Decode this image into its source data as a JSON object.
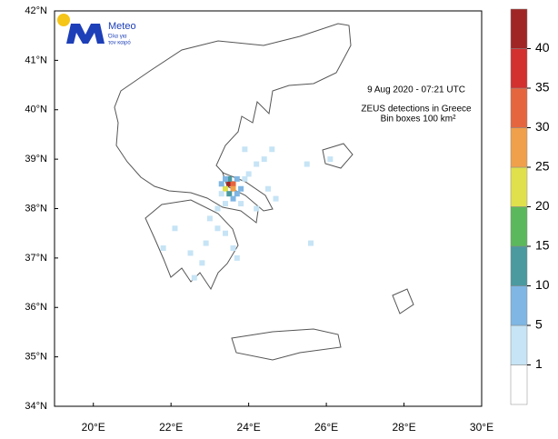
{
  "logo": {
    "name": "Meteo",
    "tagline": [
      "Όλα για",
      "τον καιρό"
    ]
  },
  "annotation": {
    "datetime": "9  Aug 2020 - 07:21 UTC",
    "line1": "ZEUS detections in Greece",
    "line2": "Bin boxes 100 km²"
  },
  "map": {
    "lonlim": [
      19,
      30
    ],
    "latlim": [
      34,
      42
    ],
    "lon_ticks": [
      {
        "value": 20,
        "label": "20°E"
      },
      {
        "value": 22,
        "label": "22°E"
      },
      {
        "value": 24,
        "label": "24°E"
      },
      {
        "value": 26,
        "label": "26°E"
      },
      {
        "value": 28,
        "label": "28°E"
      },
      {
        "value": 30,
        "label": "30°E"
      }
    ],
    "lat_ticks": [
      {
        "value": 34,
        "label": "34°N"
      },
      {
        "value": 35,
        "label": "35°N"
      },
      {
        "value": 36,
        "label": "36°N"
      },
      {
        "value": 37,
        "label": "37°N"
      },
      {
        "value": 38,
        "label": "38°N"
      },
      {
        "value": 39,
        "label": "39°N"
      },
      {
        "value": 40,
        "label": "40°N"
      },
      {
        "value": 41,
        "label": "41°N"
      },
      {
        "value": 42,
        "label": "42°N"
      }
    ],
    "cells": [
      {
        "lon": 23.5,
        "lat": 38.5,
        "value": 40
      },
      {
        "lon": 23.6,
        "lat": 38.5,
        "value": 32
      },
      {
        "lon": 23.4,
        "lat": 38.4,
        "value": 22
      },
      {
        "lon": 23.6,
        "lat": 38.4,
        "value": 25
      },
      {
        "lon": 23.5,
        "lat": 38.6,
        "value": 12
      },
      {
        "lon": 23.7,
        "lat": 38.6,
        "value": 8
      },
      {
        "lon": 23.4,
        "lat": 38.6,
        "value": 6
      },
      {
        "lon": 23.3,
        "lat": 38.5,
        "value": 5
      },
      {
        "lon": 23.8,
        "lat": 38.4,
        "value": 7
      },
      {
        "lon": 23.5,
        "lat": 38.3,
        "value": 10
      },
      {
        "lon": 23.7,
        "lat": 38.3,
        "value": 6
      },
      {
        "lon": 23.3,
        "lat": 38.3,
        "value": 4
      },
      {
        "lon": 23.9,
        "lat": 38.6,
        "value": 3
      },
      {
        "lon": 24.0,
        "lat": 38.7,
        "value": 2
      },
      {
        "lon": 23.6,
        "lat": 38.2,
        "value": 6
      },
      {
        "lon": 23.4,
        "lat": 38.1,
        "value": 3
      },
      {
        "lon": 23.8,
        "lat": 38.1,
        "value": 2
      },
      {
        "lon": 24.2,
        "lat": 38.9,
        "value": 2
      },
      {
        "lon": 24.4,
        "lat": 39.0,
        "value": 1
      },
      {
        "lon": 24.6,
        "lat": 39.2,
        "value": 1
      },
      {
        "lon": 23.9,
        "lat": 39.2,
        "value": 2
      },
      {
        "lon": 23.2,
        "lat": 38.0,
        "value": 2
      },
      {
        "lon": 23.0,
        "lat": 37.8,
        "value": 3
      },
      {
        "lon": 23.2,
        "lat": 37.6,
        "value": 4
      },
      {
        "lon": 23.4,
        "lat": 37.5,
        "value": 3
      },
      {
        "lon": 23.6,
        "lat": 37.2,
        "value": 2
      },
      {
        "lon": 23.7,
        "lat": 37.0,
        "value": 2
      },
      {
        "lon": 22.9,
        "lat": 37.3,
        "value": 3
      },
      {
        "lon": 22.5,
        "lat": 37.1,
        "value": 2
      },
      {
        "lon": 22.8,
        "lat": 36.9,
        "value": 2
      },
      {
        "lon": 22.6,
        "lat": 36.6,
        "value": 1
      },
      {
        "lon": 24.5,
        "lat": 38.4,
        "value": 1
      },
      {
        "lon": 24.7,
        "lat": 38.2,
        "value": 2
      },
      {
        "lon": 25.5,
        "lat": 38.9,
        "value": 1
      },
      {
        "lon": 26.1,
        "lat": 39.0,
        "value": 1
      },
      {
        "lon": 25.6,
        "lat": 37.3,
        "value": 1
      },
      {
        "lon": 21.8,
        "lat": 37.2,
        "value": 1
      },
      {
        "lon": 22.1,
        "lat": 37.6,
        "value": 1
      },
      {
        "lon": 24.2,
        "lat": 38.0,
        "value": 2
      }
    ]
  },
  "colorbar": {
    "levels": [
      1,
      5,
      10,
      15,
      20,
      25,
      30,
      35,
      40
    ],
    "colors": [
      "#ffffff",
      "#c6e4f5",
      "#7fb6e3",
      "#4a9aa0",
      "#5cb85c",
      "#e0e04d",
      "#f0a04a",
      "#e5663e",
      "#d33030",
      "#a02626"
    ]
  }
}
